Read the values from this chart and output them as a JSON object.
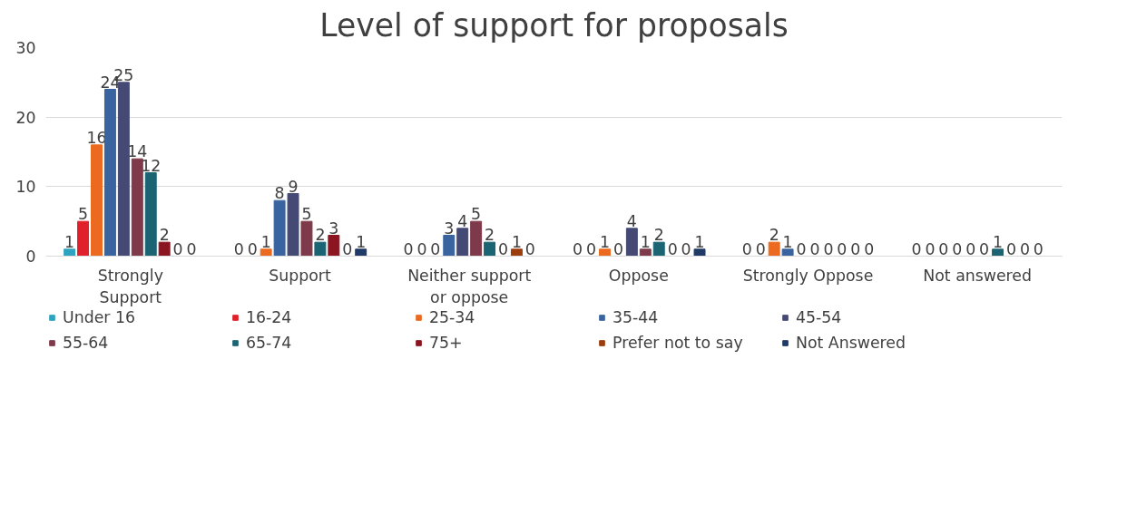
{
  "chart_data": {
    "type": "bar",
    "title": "Level of support for proposals",
    "categories": [
      "Strongly Support",
      "Support",
      "Neither support or oppose",
      "Oppose",
      "Strongly Oppose",
      "Not answered"
    ],
    "series": [
      {
        "name": "Under 16",
        "color": "#2ea3c0",
        "values": [
          1,
          0,
          0,
          0,
          0,
          0
        ]
      },
      {
        "name": "16-24",
        "color": "#e0202b",
        "values": [
          5,
          0,
          0,
          0,
          0,
          0
        ]
      },
      {
        "name": "25-34",
        "color": "#eb6a1f",
        "values": [
          16,
          1,
          0,
          1,
          2,
          0
        ]
      },
      {
        "name": "35-44",
        "color": "#3a64a0",
        "values": [
          24,
          8,
          3,
          0,
          1,
          0
        ]
      },
      {
        "name": "45-54",
        "color": "#454a75",
        "values": [
          25,
          9,
          4,
          4,
          0,
          0
        ]
      },
      {
        "name": "55-64",
        "color": "#7e3a4a",
        "values": [
          14,
          5,
          5,
          1,
          0,
          0
        ]
      },
      {
        "name": "65-74",
        "color": "#1b6474",
        "values": [
          12,
          2,
          2,
          2,
          0,
          1
        ]
      },
      {
        "name": "75+",
        "color": "#8b1520",
        "values": [
          2,
          3,
          0,
          0,
          0,
          0
        ]
      },
      {
        "name": "Prefer not to say",
        "color": "#9c3d0e",
        "values": [
          0,
          0,
          1,
          0,
          0,
          0
        ]
      },
      {
        "name": "Not Answered",
        "color": "#1f3a66",
        "values": [
          0,
          1,
          0,
          1,
          0,
          0
        ]
      }
    ],
    "ylim": [
      0,
      30
    ],
    "yticks": [
      0,
      10,
      20,
      30
    ],
    "grid": "y",
    "legend": "bottom",
    "data_labels": true
  }
}
